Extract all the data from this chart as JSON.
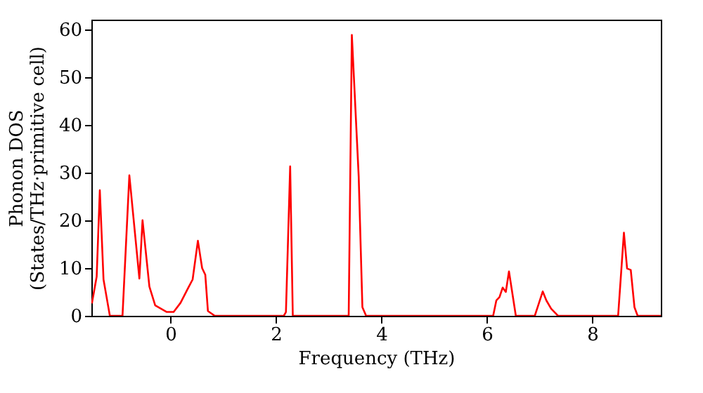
{
  "chart_data": {
    "type": "line",
    "xlabel": "Frequency (THz)",
    "ylabel": "Phonon DOS\n(States/THz·primitive cell)",
    "xlim": [
      -1.5,
      9.3
    ],
    "ylim": [
      0,
      62
    ],
    "xticks": [
      0,
      2,
      4,
      6,
      8
    ],
    "yticks": [
      0,
      10,
      20,
      30,
      40,
      50,
      60
    ],
    "grid": false,
    "line_style": "solid",
    "series": [
      {
        "color": "#ff0000",
        "x": [
          -1.49,
          -1.4,
          -1.34,
          -1.27,
          -1.21,
          -1.15,
          -0.91,
          -0.78,
          -0.59,
          -0.53,
          -0.4,
          -0.29,
          -0.07,
          0.06,
          0.19,
          0.33,
          0.42,
          0.52,
          0.6,
          0.66,
          0.71,
          0.84,
          2.15,
          2.19,
          2.27,
          2.32,
          3.38,
          3.44,
          3.57,
          3.64,
          3.71,
          6.12,
          6.18,
          6.24,
          6.3,
          6.36,
          6.42,
          6.55,
          6.91,
          7.06,
          7.13,
          7.22,
          7.35,
          8.49,
          8.6,
          8.66,
          8.73,
          8.8,
          8.86,
          9.3
        ],
        "values": [
          2.6,
          8.2,
          26.3,
          7.6,
          3.8,
          0,
          0,
          29.4,
          7.8,
          20.0,
          6.1,
          2.2,
          0.8,
          0.8,
          2.7,
          5.7,
          7.6,
          15.7,
          10.0,
          8.6,
          1.0,
          0,
          0,
          0.8,
          31.3,
          0,
          0,
          58.8,
          29.1,
          1.8,
          0,
          0,
          3.2,
          3.9,
          5.9,
          5.0,
          9.3,
          0,
          0,
          5.1,
          3.2,
          1.5,
          0,
          0,
          17.4,
          9.9,
          9.6,
          1.8,
          0,
          0
        ]
      }
    ]
  }
}
